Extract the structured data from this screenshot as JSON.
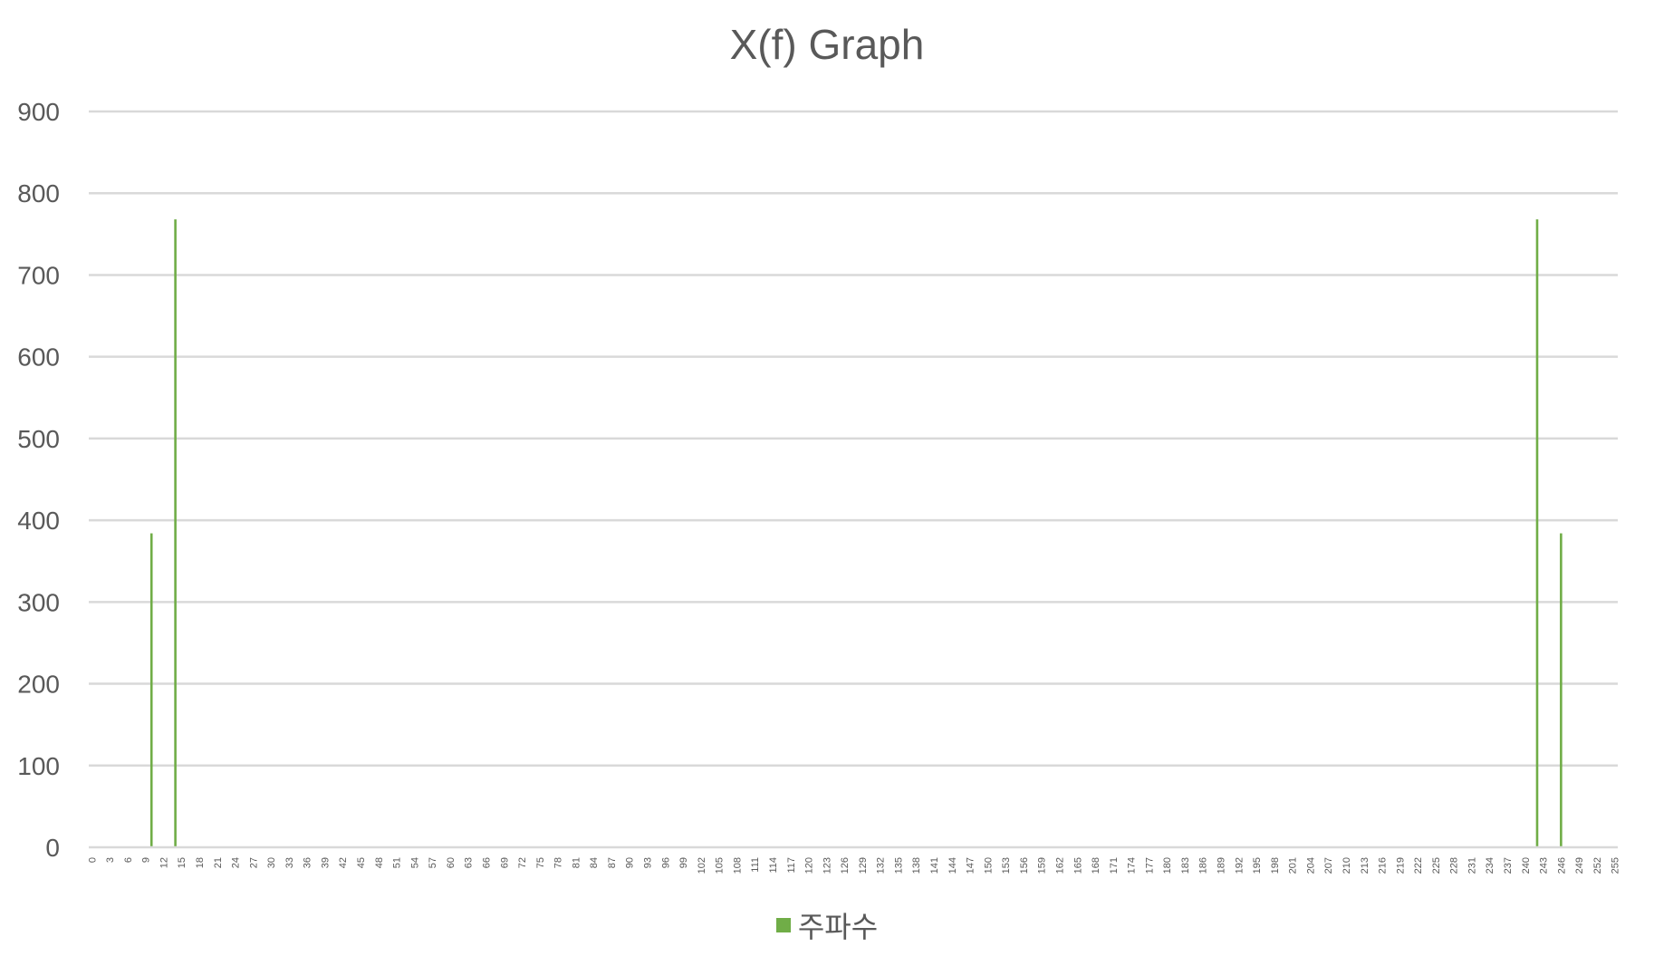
{
  "chart_data": {
    "type": "bar",
    "title": "X(f) Graph",
    "xlabel": "",
    "ylabel": "",
    "ylim": [
      0,
      900
    ],
    "yticks": [
      0,
      100,
      200,
      300,
      400,
      500,
      600,
      700,
      800,
      900
    ],
    "x_tick_step": 3,
    "x_range": [
      0,
      255
    ],
    "x_extra_tick": 255,
    "grid": true,
    "legend_position": "bottom",
    "series": [
      {
        "name": "주파수",
        "color": "#70ad47",
        "x": [
          10,
          14,
          242,
          246
        ],
        "values": [
          384,
          768,
          768,
          384
        ]
      }
    ]
  }
}
